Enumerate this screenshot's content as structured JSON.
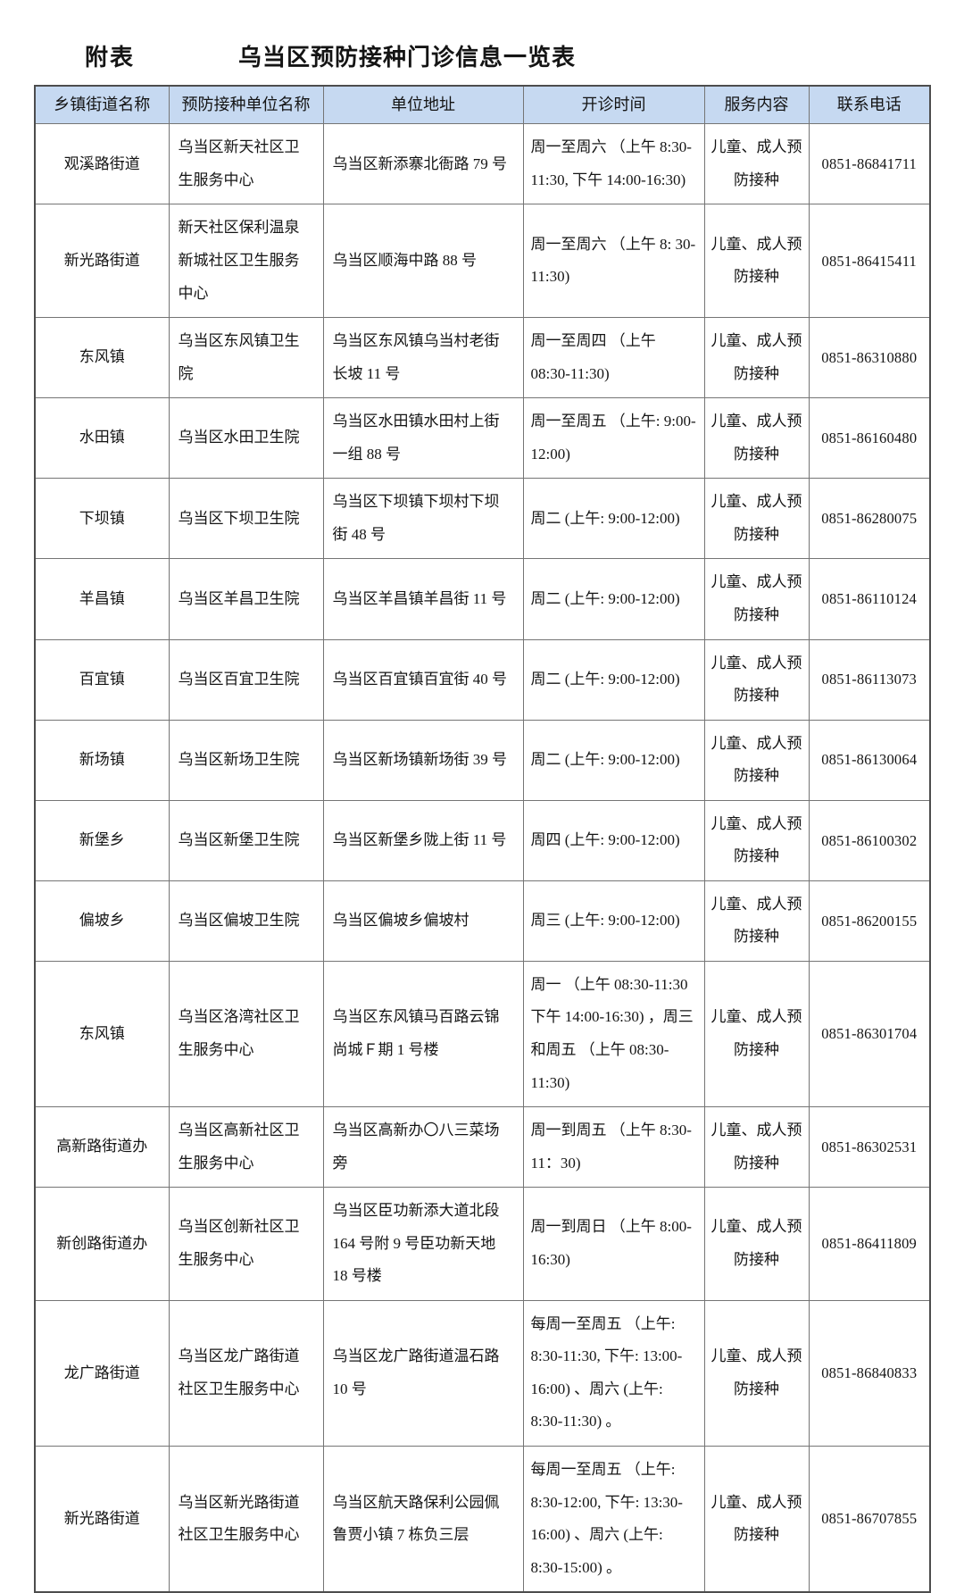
{
  "page": {
    "annex_label": "附表",
    "title": "乌当区预防接种门诊信息一览表"
  },
  "colors": {
    "header_bg": "#c6d9f1",
    "border_inner": "#757575",
    "border_outer": "#4d4d4d",
    "text": "#141414"
  },
  "table": {
    "columns": [
      "乡镇街道名称",
      "预防接种单位名称",
      "单位地址",
      "开诊时间",
      "服务内容",
      "联系电话"
    ],
    "rows": [
      {
        "town": "观溪路街道",
        "unit": "乌当区新天社区卫生服务中心",
        "address": "乌当区新添寨北衙路 79 号",
        "hours": "周一至周六 （上午 8:30-11:30, 下午 14:00-16:30)",
        "service": "儿童、成人预防接种",
        "phone": "0851-86841711"
      },
      {
        "town": "新光路街道",
        "unit": "新天社区保利温泉新城社区卫生服务中心",
        "address": "乌当区顺海中路 88 号",
        "hours": "周一至周六 （上午 8: 30-11:30)",
        "service": "儿童、成人预防接种",
        "phone": "0851-86415411"
      },
      {
        "town": "东风镇",
        "unit": "乌当区东风镇卫生院",
        "address": "乌当区东风镇乌当村老街长坡 11 号",
        "hours": "周一至周四 （上午 08:30-11:30)",
        "service": "儿童、成人预防接种",
        "phone": "0851-86310880"
      },
      {
        "town": "水田镇",
        "unit": "乌当区水田卫生院",
        "address": "乌当区水田镇水田村上街一组 88 号",
        "hours": "周一至周五 （上午: 9:00-12:00)",
        "service": "儿童、成人预防接种",
        "phone": "0851-86160480"
      },
      {
        "town": "下坝镇",
        "unit": "乌当区下坝卫生院",
        "address": "乌当区下坝镇下坝村下坝街 48 号",
        "hours": "周二 (上午: 9:00-12:00)",
        "service": "儿童、成人预防接种",
        "phone": "0851-86280075"
      },
      {
        "town": "羊昌镇",
        "unit": "乌当区羊昌卫生院",
        "address": "乌当区羊昌镇羊昌街 11 号",
        "hours": "周二 (上午: 9:00-12:00)",
        "service": "儿童、成人预防接种",
        "phone": "0851-86110124"
      },
      {
        "town": "百宜镇",
        "unit": "乌当区百宜卫生院",
        "address": "乌当区百宜镇百宜街 40 号",
        "hours": "周二 (上午: 9:00-12:00)",
        "service": "儿童、成人预防接种",
        "phone": "0851-86113073"
      },
      {
        "town": "新场镇",
        "unit": "乌当区新场卫生院",
        "address": "乌当区新场镇新场街 39 号",
        "hours": "周二 (上午: 9:00-12:00)",
        "service": "儿童、成人预防接种",
        "phone": "0851-86130064"
      },
      {
        "town": "新堡乡",
        "unit": "乌当区新堡卫生院",
        "address": "乌当区新堡乡陇上街 11 号",
        "hours": "周四 (上午: 9:00-12:00)",
        "service": "儿童、成人预防接种",
        "phone": "0851-86100302"
      },
      {
        "town": "偏坡乡",
        "unit": "乌当区偏坡卫生院",
        "address": "乌当区偏坡乡偏坡村",
        "hours": "周三 (上午: 9:00-12:00)",
        "service": "儿童、成人预防接种",
        "phone": "0851-86200155"
      },
      {
        "town": "东风镇",
        "unit": "乌当区洛湾社区卫生服务中心",
        "address": "乌当区东风镇马百路云锦尚城Ｆ期 1 号楼",
        "hours": "周一 （上午 08:30-11:30 下午 14:00-16:30) ，周三和周五 （上午 08:30-11:30)",
        "service": "儿童、成人预防接种",
        "phone": "0851-86301704"
      },
      {
        "town": "高新路街道办",
        "unit": "乌当区高新社区卫生服务中心",
        "address": "乌当区高新办〇八三菜场旁",
        "hours": "周一到周五 （上午 8:30-11：30)",
        "service": "儿童、成人预防接种",
        "phone": "0851-86302531"
      },
      {
        "town": "新创路街道办",
        "unit": "乌当区创新社区卫生服务中心",
        "address": "乌当区臣功新添大道北段 164 号附 9 号臣功新天地 18 号楼",
        "hours": "周一到周日 （上午 8:00-16:30)",
        "service": "儿童、成人预防接种",
        "phone": "0851-86411809"
      },
      {
        "town": "龙广路街道",
        "unit": "乌当区龙广路街道社区卫生服务中心",
        "address": "乌当区龙广路街道温石路 10 号",
        "hours": "每周一至周五 （上午: 8:30-11:30, 下午: 13:00-16:00) 、周六 (上午: 8:30-11:30) 。",
        "service": "儿童、成人预防接种",
        "phone": "0851-86840833"
      },
      {
        "town": "新光路街道",
        "unit": "乌当区新光路街道社区卫生服务中心",
        "address": "乌当区航天路保利公园佩鲁贾小镇 7 栋负三层",
        "hours": "每周一至周五 （上午: 8:30-12:00, 下午: 13:30-16:00) 、周六 (上午: 8:30-15:00) 。",
        "service": "儿童、成人预防接种",
        "phone": "0851-86707855"
      }
    ]
  }
}
